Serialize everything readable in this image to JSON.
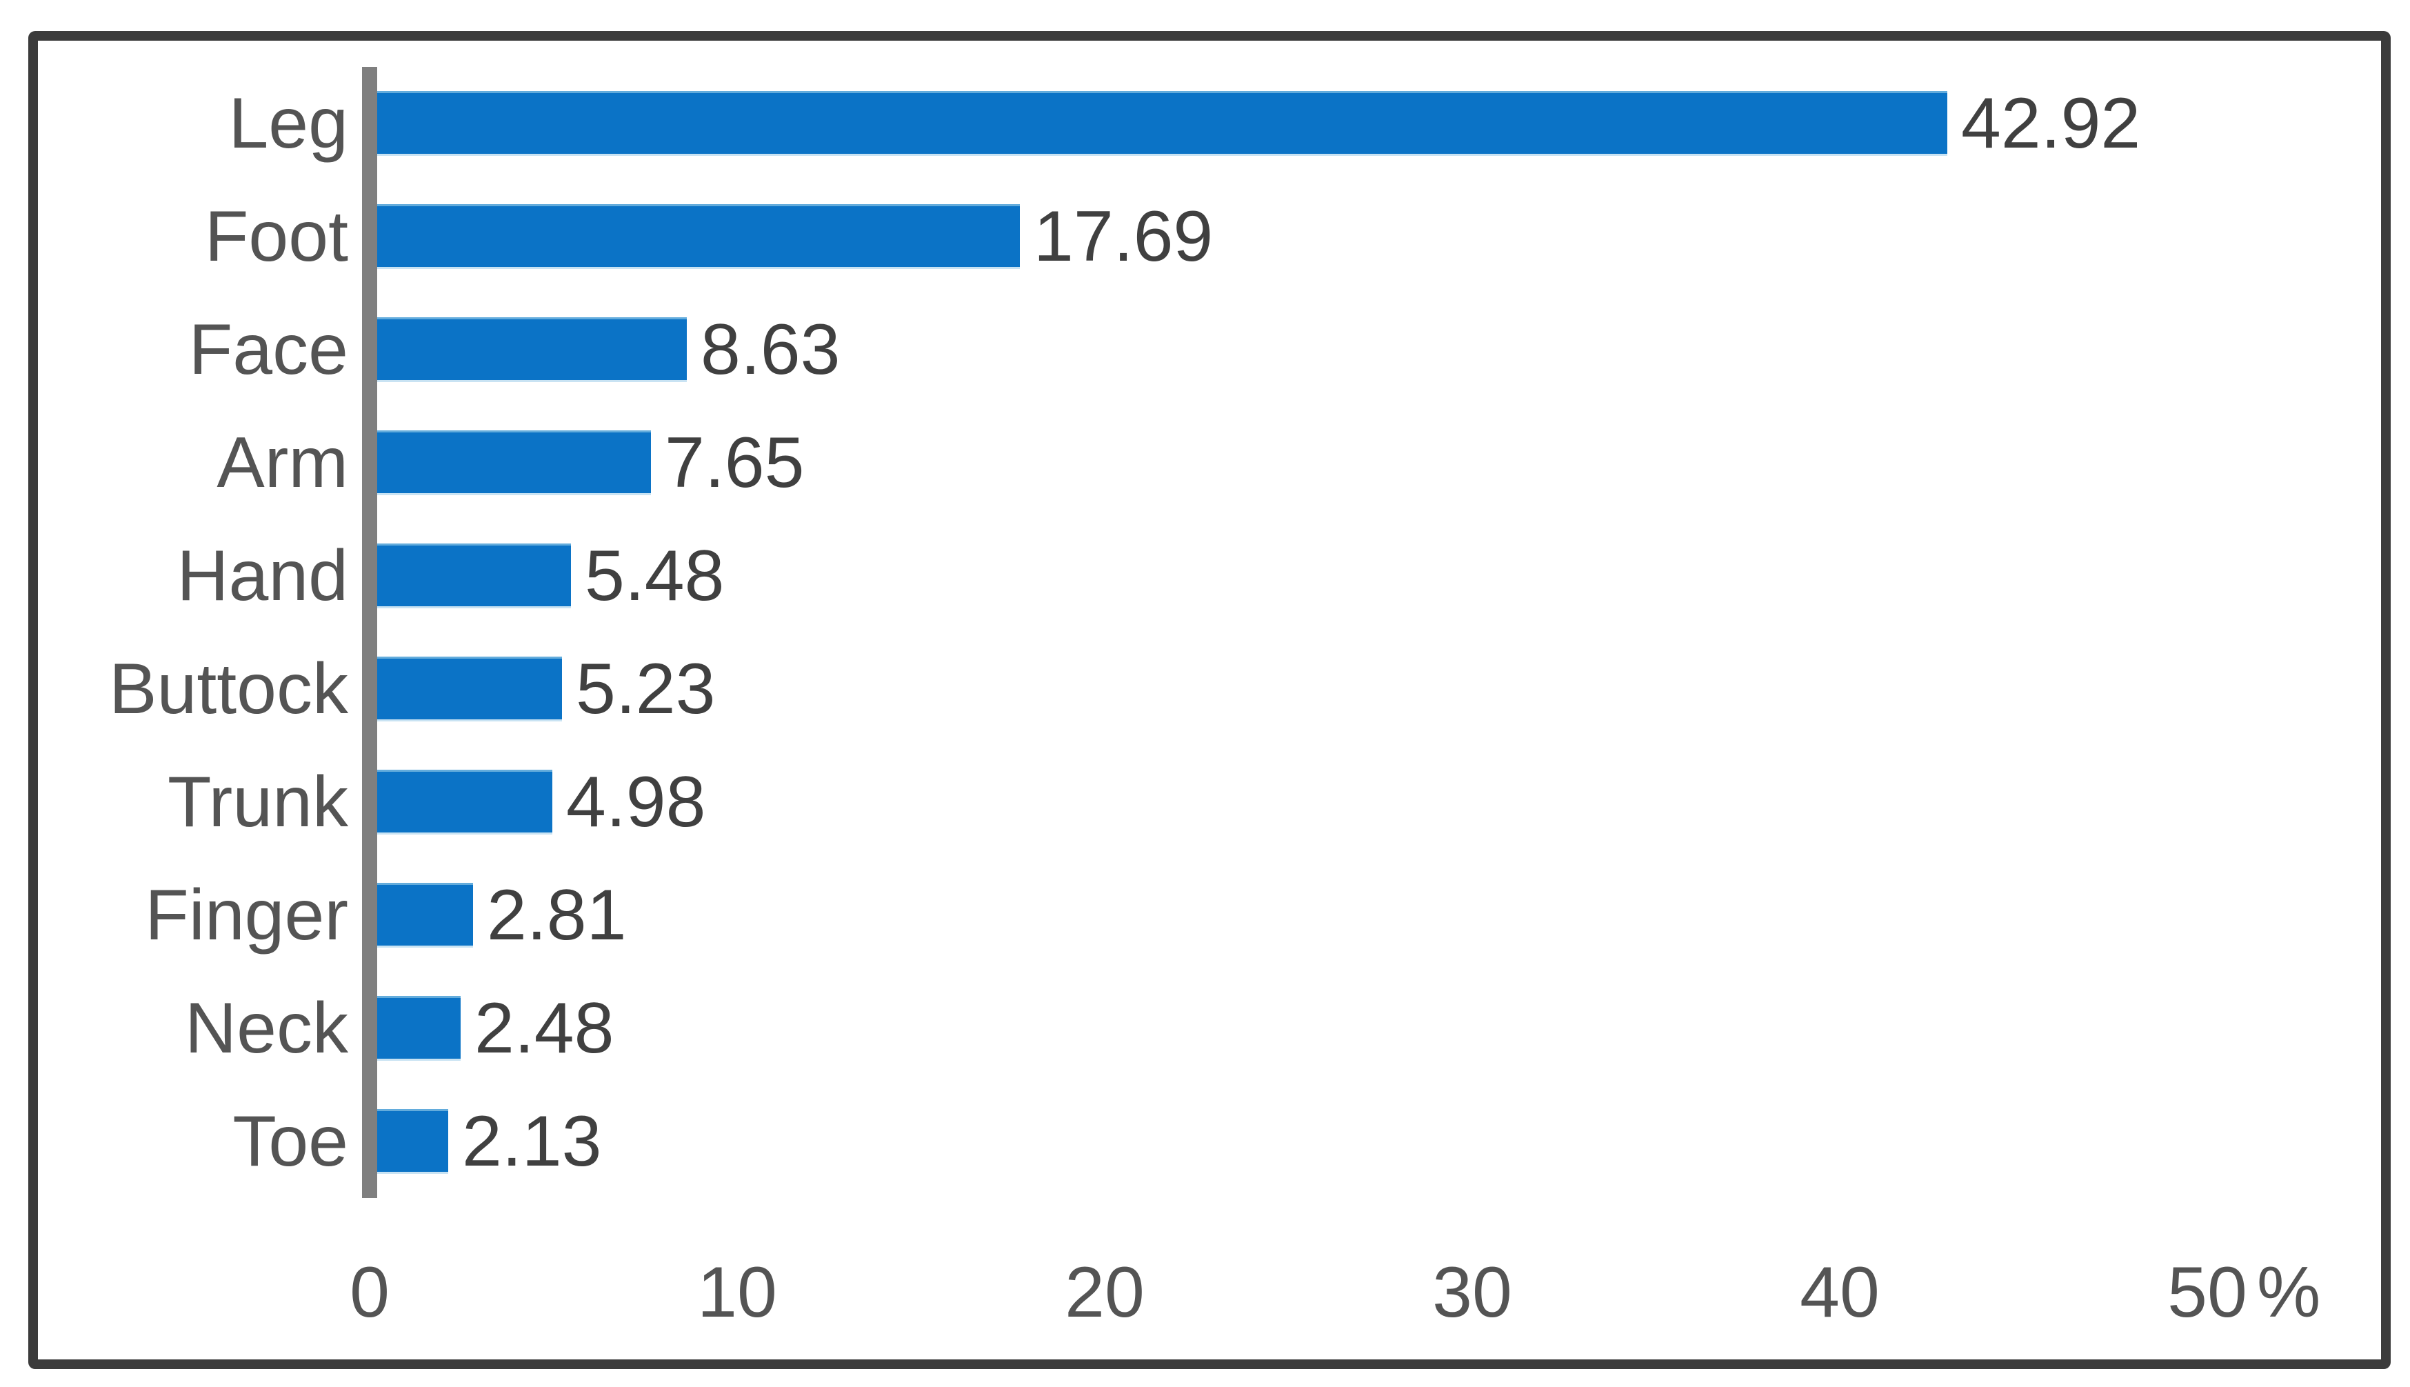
{
  "chart_data": {
    "type": "bar",
    "orientation": "horizontal",
    "title": "",
    "xlabel": "",
    "ylabel": "",
    "categories": [
      "Leg",
      "Foot",
      "Face",
      "Arm",
      "Hand",
      "Buttock",
      "Trunk",
      "Finger",
      "Neck",
      "Toe"
    ],
    "values": [
      42.92,
      17.69,
      8.63,
      7.65,
      5.48,
      5.23,
      4.98,
      2.81,
      2.48,
      2.13
    ],
    "data_labels": [
      "42.92",
      "17.69",
      "8.63",
      "7.65",
      "5.48",
      "5.23",
      "4.98",
      "2.81",
      "2.48",
      "2.13"
    ],
    "xlim": [
      0,
      50
    ],
    "x_ticks": [
      {
        "label": "0",
        "value": 0
      },
      {
        "label": "10",
        "value": 10
      },
      {
        "label": "20",
        "value": 20
      },
      {
        "label": "30",
        "value": 30
      },
      {
        "label": "40",
        "value": 40
      },
      {
        "label": "50",
        "value": 50,
        "suffix": "%"
      }
    ],
    "grid": false,
    "legend": false,
    "colors": {
      "bar_fill": "#0B73C6",
      "bar_edge_top": "#63ACDC",
      "bar_edge_bottom": "#C9E3F3",
      "axis_line": "#7F7F7F",
      "category_label": "#545454",
      "tick_label": "#545454",
      "value_label": "#404040",
      "frame_border": "#3B3B3B",
      "background": "#FFFFFF"
    }
  }
}
